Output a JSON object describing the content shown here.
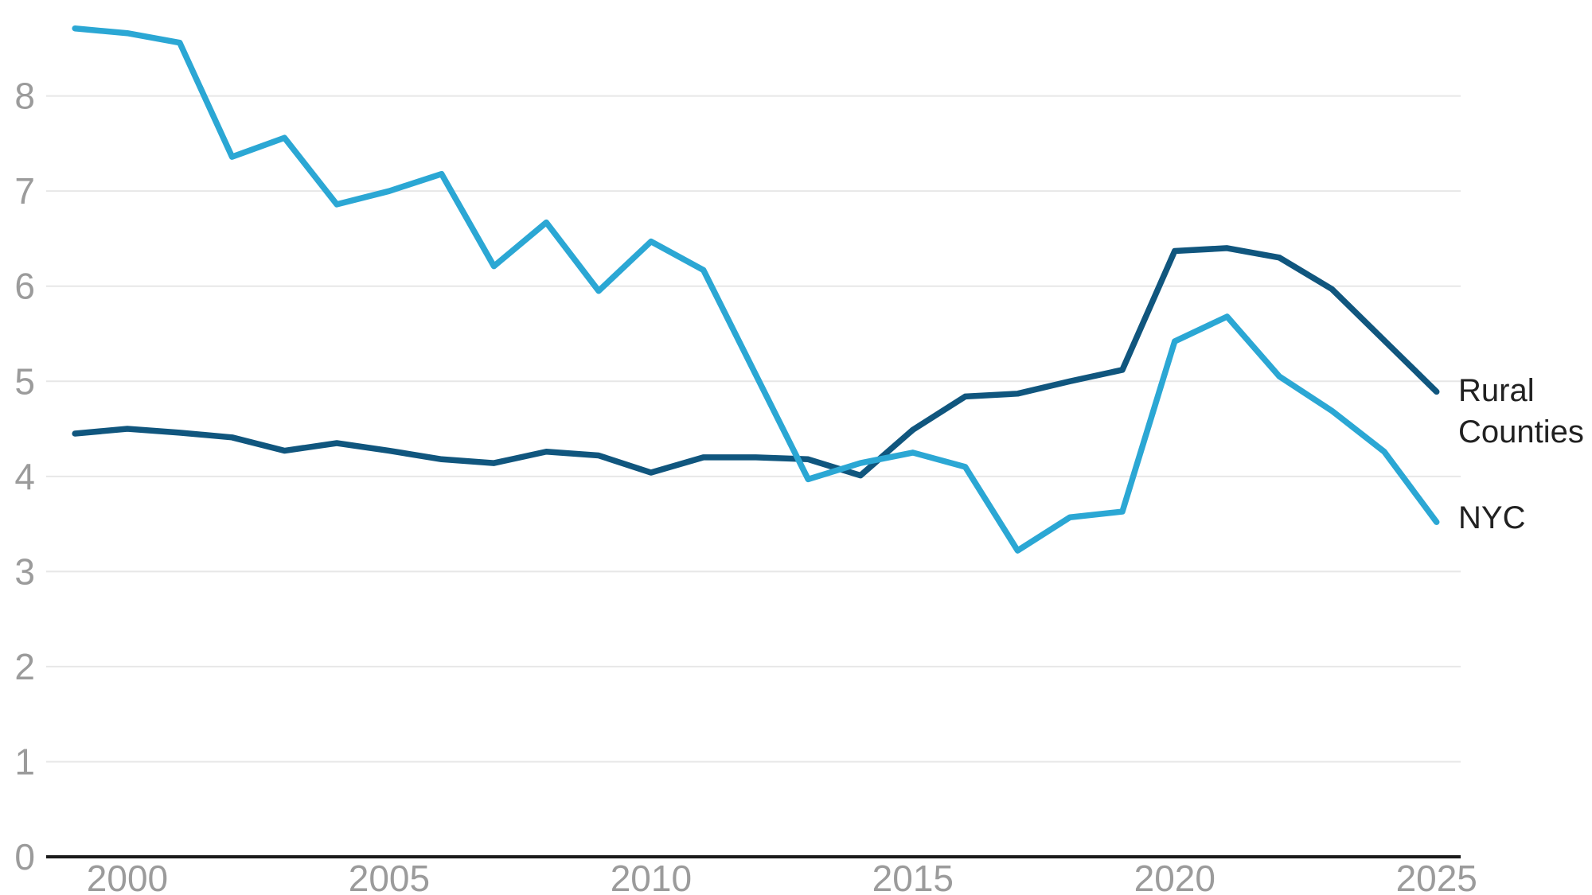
{
  "chart_data": {
    "type": "line",
    "x": [
      1999,
      2000,
      2001,
      2002,
      2003,
      2004,
      2005,
      2006,
      2007,
      2008,
      2009,
      2010,
      2011,
      2012,
      2013,
      2014,
      2015,
      2016,
      2017,
      2018,
      2019,
      2020,
      2021,
      2022,
      2023,
      2024,
      2025
    ],
    "series": [
      {
        "name": "Rural Counties",
        "color": "#10567e",
        "values": [
          4.45,
          4.5,
          4.46,
          4.41,
          4.27,
          4.35,
          4.27,
          4.18,
          4.14,
          4.26,
          4.22,
          4.04,
          4.2,
          4.2,
          4.18,
          4.01,
          4.49,
          4.84,
          4.87,
          5.0,
          5.12,
          6.37,
          6.4,
          6.3,
          5.97,
          5.43,
          4.89
        ]
      },
      {
        "name": "NYC",
        "color": "#2ba7d4",
        "values": [
          8.71,
          8.66,
          8.56,
          7.36,
          7.56,
          6.86,
          7.0,
          7.18,
          6.21,
          6.67,
          5.95,
          6.47,
          6.17,
          5.07,
          3.97,
          4.14,
          4.25,
          4.1,
          3.22,
          3.57,
          3.63,
          5.42,
          5.68,
          5.05,
          4.69,
          4.26,
          3.52
        ]
      }
    ],
    "title": "",
    "xlabel": "",
    "ylabel": "",
    "x_ticks": [
      2000,
      2005,
      2010,
      2015,
      2020,
      2025
    ],
    "y_ticks": [
      0,
      1,
      2,
      3,
      4,
      5,
      6,
      7,
      8
    ],
    "xlim": [
      1998.45,
      2025.46
    ],
    "ylim": [
      0,
      8.8
    ],
    "grid": "horizontal",
    "legend_position": "right of line ends",
    "legend": {
      "rural": [
        "Rural",
        "Counties"
      ],
      "nyc": "NYC"
    },
    "colors": {
      "grid_line": "#e7e7e7",
      "axis_line": "#1a1a1a",
      "tick_text": "#9b9b9b",
      "label_text": "#212121"
    }
  }
}
